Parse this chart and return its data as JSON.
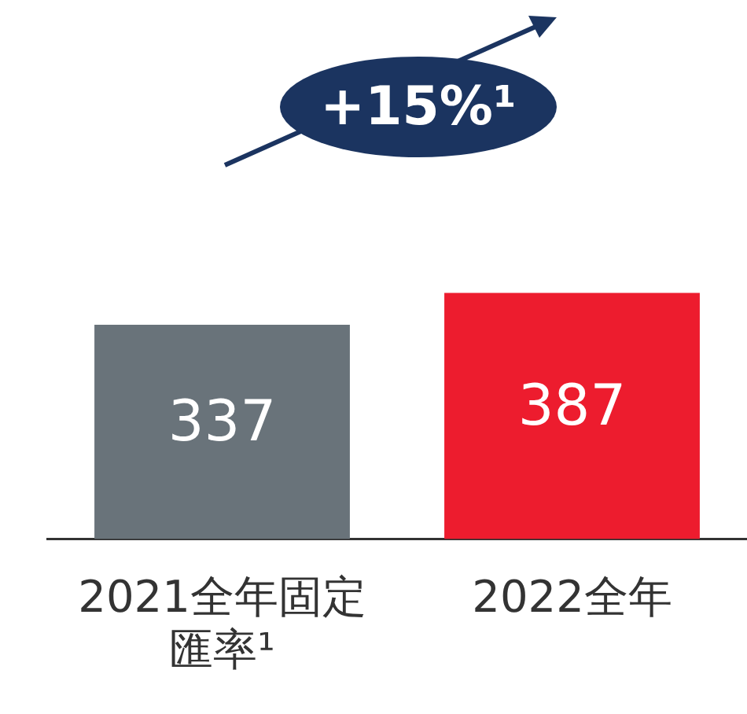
{
  "chart_data": {
    "type": "bar",
    "categories": [
      "2021全年固定匯率¹",
      "2022全年"
    ],
    "values": [
      337,
      387
    ],
    "colors": [
      "#69737a",
      "#ed1c2e"
    ],
    "data_labels": true,
    "annotations": [
      "+15%¹"
    ]
  }
}
